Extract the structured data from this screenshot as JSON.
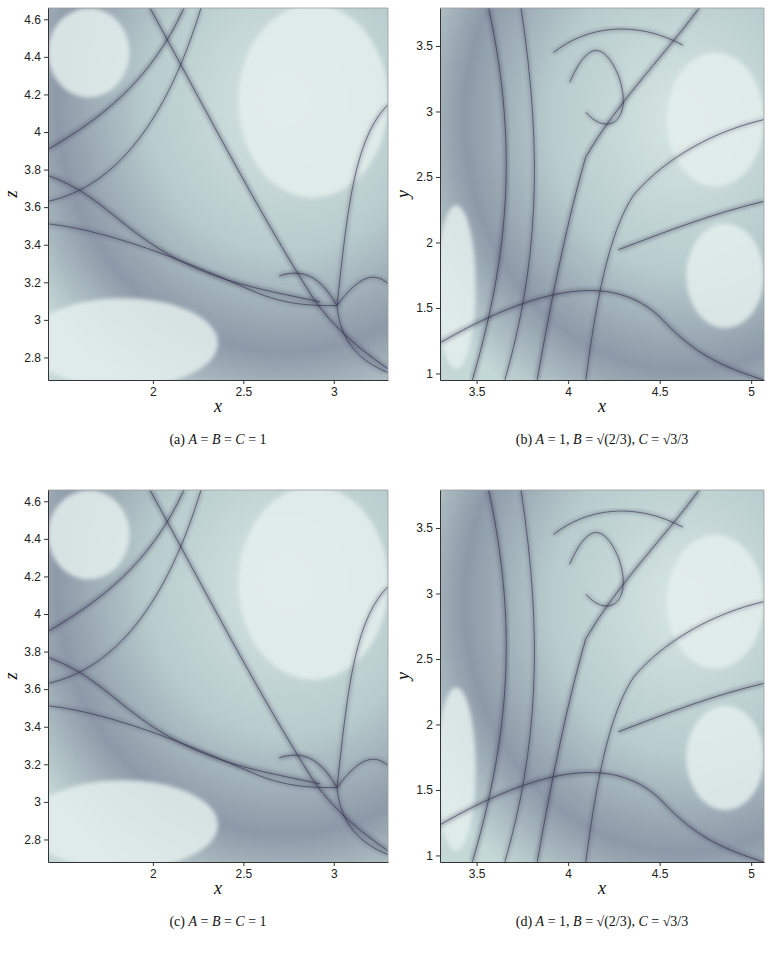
{
  "chart_data": [
    {
      "type": "image",
      "caption": "(a) A = B = C = 1",
      "xlabel": "x",
      "ylabel": "z",
      "xlim": [
        1.42,
        3.3
      ],
      "xticks": [
        2,
        2.5,
        3
      ],
      "ylim": [
        2.68,
        4.66
      ],
      "yticks": [
        2.8,
        3,
        3.2,
        3.4,
        3.6,
        3.8,
        4,
        4.2,
        4.4,
        4.6
      ]
    },
    {
      "type": "image",
      "caption": "(b) A = 1, B = √(2/3), C = √3/3",
      "xlabel": "x",
      "ylabel": "y",
      "xlim": [
        3.3,
        5.07
      ],
      "xticks": [
        3.5,
        4,
        4.5,
        5
      ],
      "ylim": [
        0.95,
        3.79
      ],
      "yticks": [
        1,
        1.5,
        2,
        2.5,
        3,
        3.5
      ]
    },
    {
      "type": "image",
      "caption": "(c) A = B = C = 1",
      "xlabel": "x",
      "ylabel": "z",
      "xlim": [
        1.42,
        3.3
      ],
      "xticks": [
        2,
        2.5,
        3
      ],
      "ylim": [
        2.68,
        4.66
      ],
      "yticks": [
        2.8,
        3,
        3.2,
        3.4,
        3.6,
        3.8,
        4,
        4.2,
        4.4,
        4.6
      ]
    },
    {
      "type": "image",
      "caption": "(d) A = 1, B = √(2/3), C = √3/3",
      "xlabel": "x",
      "ylabel": "y",
      "xlim": [
        3.3,
        5.07
      ],
      "xticks": [
        3.5,
        4,
        4.5,
        5
      ],
      "ylim": [
        0.95,
        3.79
      ],
      "yticks": [
        1,
        1.5,
        2,
        2.5,
        3,
        3.5
      ]
    }
  ]
}
